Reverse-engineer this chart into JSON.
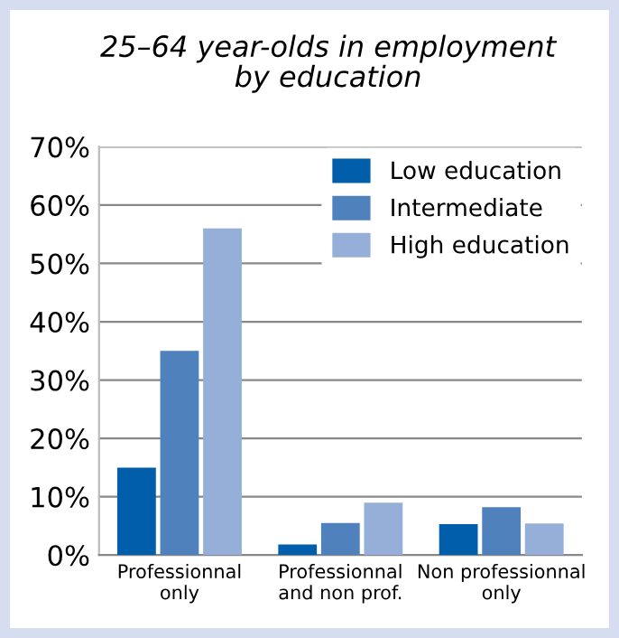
{
  "chart_data": {
    "type": "bar",
    "title": "25–64 year-olds in employment\nby education",
    "categories": [
      "Professionnal\nonly",
      "Professionnal\nand non prof.",
      "Non professionnal\nonly"
    ],
    "series": [
      {
        "name": "Low education",
        "color": "#005eaa",
        "values": [
          15,
          1.8,
          5.3
        ]
      },
      {
        "name": "Intermediate",
        "color": "#4f81bd",
        "values": [
          35,
          5.5,
          8.2
        ]
      },
      {
        "name": "High education",
        "color": "#95afd9",
        "values": [
          56,
          9,
          5.4
        ]
      }
    ],
    "ylim": [
      0,
      70
    ],
    "yticks": [
      {
        "value": 0,
        "label": "0%"
      },
      {
        "value": 10,
        "label": "10%"
      },
      {
        "value": 20,
        "label": "20%"
      },
      {
        "value": 30,
        "label": "30%"
      },
      {
        "value": 40,
        "label": "40%"
      },
      {
        "value": 50,
        "label": "50%"
      },
      {
        "value": 60,
        "label": "60%"
      },
      {
        "value": 70,
        "label": "70%"
      }
    ],
    "grid": "y",
    "legend": "top right"
  }
}
